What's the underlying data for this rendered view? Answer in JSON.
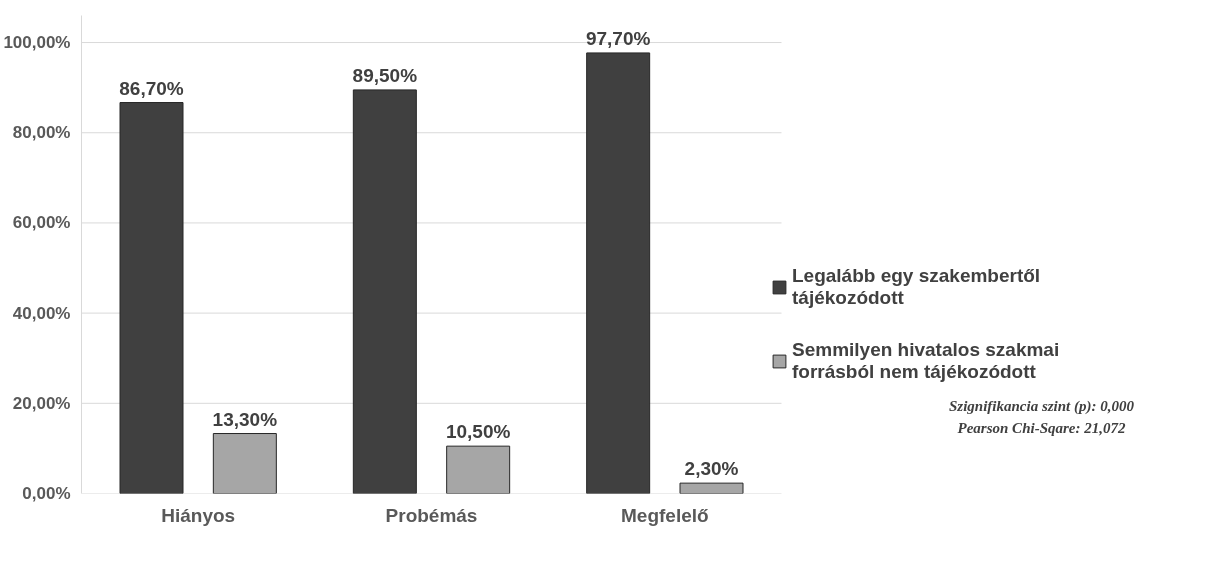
{
  "chart_data": {
    "type": "bar",
    "categories": [
      "Hiányos",
      "Probémás",
      "Megfelelő"
    ],
    "series": [
      {
        "name": "Legalább egy szakembertől tájékozódott",
        "color": "#404040",
        "values": [
          86.7,
          89.5,
          97.7
        ],
        "value_labels": [
          "86,70%",
          "89,50%",
          "97,70%"
        ]
      },
      {
        "name": "Semmilyen hivatalos szakmai forrásból nem tájékozódott",
        "color": "#a6a6a6",
        "values": [
          13.3,
          10.5,
          2.3
        ],
        "value_labels": [
          "13,30%",
          "10,50%",
          "2,30%"
        ]
      }
    ],
    "ylim": [
      0,
      106
    ],
    "yticks": [
      {
        "value": 0,
        "label": "0,00%"
      },
      {
        "value": 20,
        "label": "20,00%"
      },
      {
        "value": 40,
        "label": "40,00%"
      },
      {
        "value": 60,
        "label": "60,00%"
      },
      {
        "value": 80,
        "label": "80,00%"
      },
      {
        "value": 100,
        "label": "100,00%"
      }
    ],
    "grid": "y",
    "legend": "right",
    "annotations": [
      "Szignifikancia szint (p): 0,000",
      "Pearson Chi-Sqare: 21,072"
    ]
  }
}
